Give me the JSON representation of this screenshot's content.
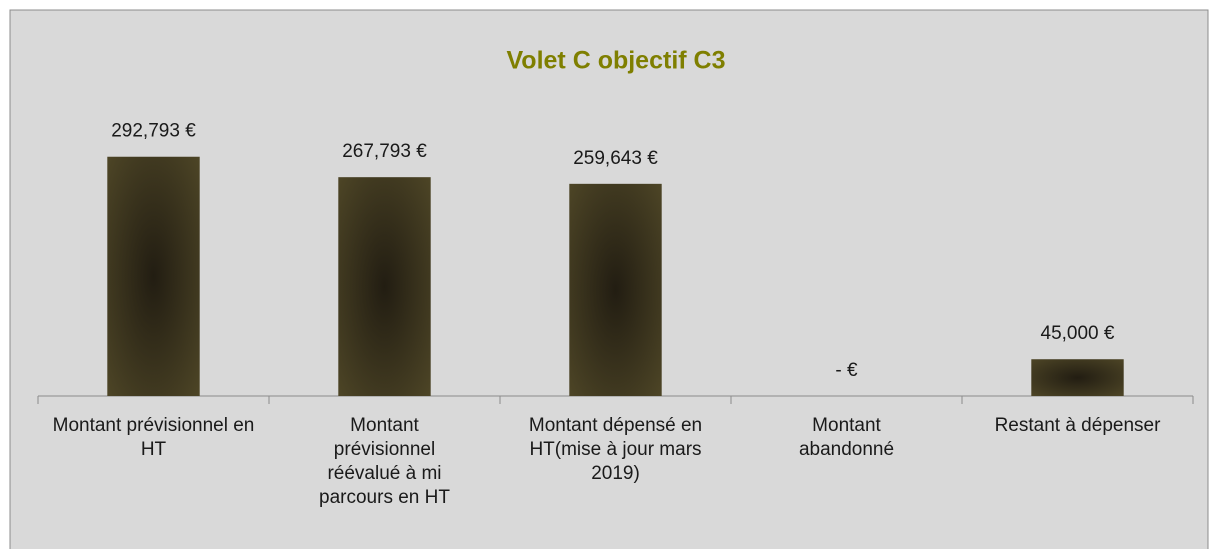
{
  "chart_data": {
    "type": "bar",
    "title": "Volet C objectif C3",
    "categories": [
      "Montant prévisionnel en HT",
      "Montant prévisionnel réévalué à mi parcours en HT",
      "Montant dépensé en HT(mise à jour mars 2019)",
      "Montant abandonné",
      "Restant à dépenser"
    ],
    "values": [
      292793,
      267793,
      259643,
      0,
      45000
    ],
    "value_labels": [
      "292,793 €",
      "267,793 €",
      "259,643 €",
      "-   €",
      "45,000 €"
    ],
    "color": "#4d4526",
    "ylim": [
      0,
      350000
    ]
  }
}
